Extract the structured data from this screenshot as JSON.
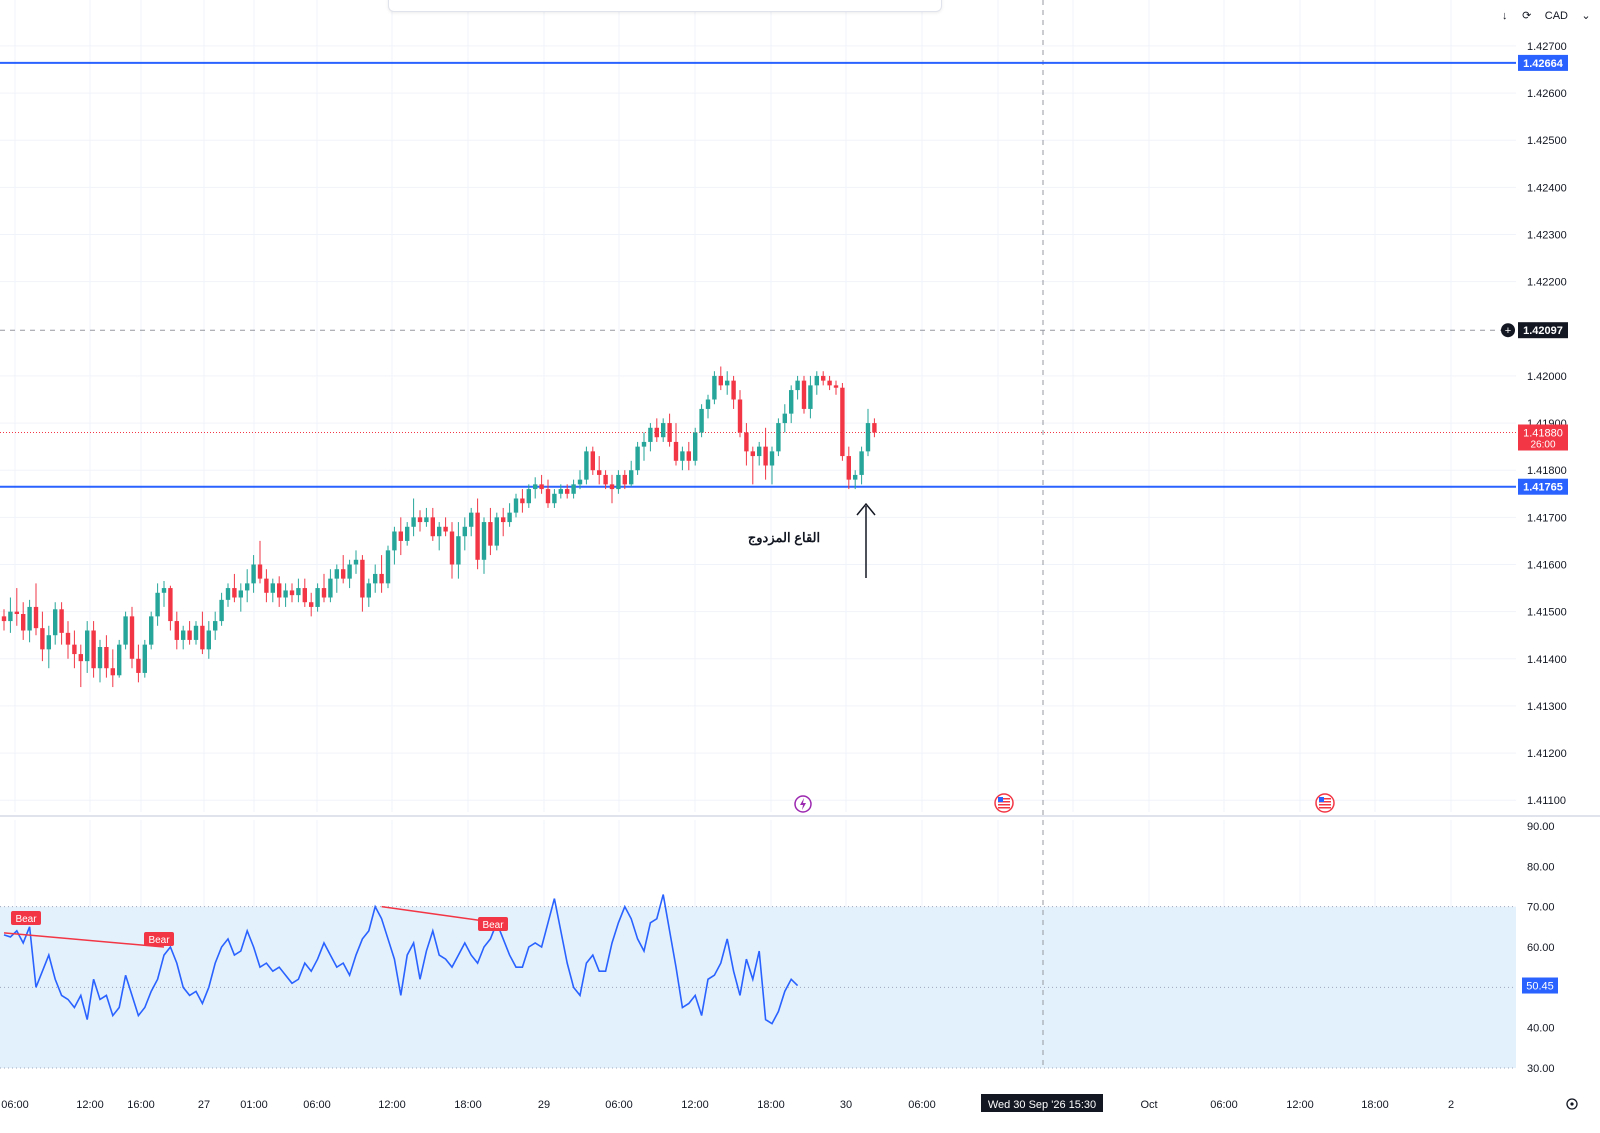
{
  "currency": "CAD",
  "currency_menu_icon": "chevron-down-icon",
  "download_icon": "arrow-down-icon",
  "sync_icon": "refresh-icon",
  "settings_icon": "gear-icon",
  "colors": {
    "up": "#26a69a",
    "down": "#f23645",
    "level_line": "#2962ff",
    "rsi_line": "#2962ff",
    "rsi_band": "#e3f1fc",
    "divergence": "#f23645",
    "crosshair_label_bg": "#131722",
    "date_label_bg": "#131722"
  },
  "chart_data": [
    {
      "type": "candlestick",
      "annotation": "القاع المزدوج",
      "ylim": [
        1.41075,
        1.42755
      ],
      "y_ticks": [
        "1.42700",
        "1.42600",
        "1.42500",
        "1.42400",
        "1.42300",
        "1.42200",
        "1.42000",
        "1.41900",
        "1.41800",
        "1.41700",
        "1.41600",
        "1.41500",
        "1.41400",
        "1.41300",
        "1.41200",
        "1.41100"
      ],
      "price_lines": [
        {
          "label": "1.42664",
          "value": 1.42664
        },
        {
          "label": "1.41765",
          "value": 1.41765
        }
      ],
      "crosshair": {
        "label": "1.42097",
        "value": 1.42097
      },
      "last_price": {
        "label": "1.41880",
        "countdown": "26:00",
        "value": 1.4188
      },
      "event_icons": [
        "lightning-icon",
        "us-flag-icon",
        "us-flag-icon"
      ],
      "ohlc": [
        [
          1.4149,
          1.41505,
          1.4146,
          1.4148
        ],
        [
          1.4148,
          1.4153,
          1.41455,
          1.415
        ],
        [
          1.415,
          1.4155,
          1.4147,
          1.41495
        ],
        [
          1.41495,
          1.4152,
          1.4144,
          1.4146
        ],
        [
          1.4146,
          1.41525,
          1.41435,
          1.4151
        ],
        [
          1.4151,
          1.4156,
          1.4145,
          1.41465
        ],
        [
          1.41465,
          1.415,
          1.41395,
          1.4142
        ],
        [
          1.4142,
          1.4147,
          1.4138,
          1.4145
        ],
        [
          1.4145,
          1.4152,
          1.4143,
          1.41505
        ],
        [
          1.41505,
          1.4152,
          1.4143,
          1.41455
        ],
        [
          1.41455,
          1.4148,
          1.414,
          1.4143
        ],
        [
          1.4143,
          1.4146,
          1.4138,
          1.4141
        ],
        [
          1.4141,
          1.4143,
          1.4134,
          1.41395
        ],
        [
          1.41395,
          1.4148,
          1.4137,
          1.4146
        ],
        [
          1.4146,
          1.4148,
          1.4136,
          1.4138
        ],
        [
          1.4138,
          1.4144,
          1.4135,
          1.41425
        ],
        [
          1.41425,
          1.4145,
          1.4136,
          1.4138
        ],
        [
          1.4138,
          1.4142,
          1.4134,
          1.41365
        ],
        [
          1.41365,
          1.4144,
          1.4136,
          1.4143
        ],
        [
          1.4143,
          1.415,
          1.4142,
          1.4149
        ],
        [
          1.4149,
          1.4151,
          1.4138,
          1.414
        ],
        [
          1.414,
          1.4143,
          1.4135,
          1.4137
        ],
        [
          1.4137,
          1.4144,
          1.4136,
          1.4143
        ],
        [
          1.4143,
          1.415,
          1.4142,
          1.4149
        ],
        [
          1.4149,
          1.4156,
          1.4147,
          1.4154
        ],
        [
          1.4154,
          1.41565,
          1.4151,
          1.4155
        ],
        [
          1.4155,
          1.41555,
          1.4146,
          1.4148
        ],
        [
          1.4148,
          1.415,
          1.4142,
          1.4144
        ],
        [
          1.4144,
          1.4147,
          1.4142,
          1.4146
        ],
        [
          1.4146,
          1.4148,
          1.4143,
          1.4144
        ],
        [
          1.4144,
          1.4148,
          1.4143,
          1.4147
        ],
        [
          1.4147,
          1.415,
          1.4141,
          1.4142
        ],
        [
          1.4142,
          1.4148,
          1.414,
          1.4146
        ],
        [
          1.4146,
          1.415,
          1.4144,
          1.4148
        ],
        [
          1.4148,
          1.4154,
          1.4147,
          1.41525
        ],
        [
          1.41525,
          1.4156,
          1.4151,
          1.4155
        ],
        [
          1.4155,
          1.4158,
          1.4152,
          1.4153
        ],
        [
          1.4153,
          1.4156,
          1.415,
          1.41545
        ],
        [
          1.41545,
          1.4159,
          1.4152,
          1.4156
        ],
        [
          1.4156,
          1.4162,
          1.4154,
          1.416
        ],
        [
          1.416,
          1.4165,
          1.4156,
          1.4157
        ],
        [
          1.4157,
          1.4159,
          1.4152,
          1.4154
        ],
        [
          1.4154,
          1.4157,
          1.4152,
          1.4156
        ],
        [
          1.4156,
          1.41575,
          1.4151,
          1.4153
        ],
        [
          1.4153,
          1.4156,
          1.4151,
          1.41545
        ],
        [
          1.41545,
          1.4156,
          1.4152,
          1.41535
        ],
        [
          1.41535,
          1.4157,
          1.4152,
          1.4155
        ],
        [
          1.4155,
          1.4157,
          1.4151,
          1.4152
        ],
        [
          1.4152,
          1.4154,
          1.4149,
          1.4151
        ],
        [
          1.4151,
          1.4156,
          1.415,
          1.4155
        ],
        [
          1.4155,
          1.4158,
          1.4152,
          1.4153
        ],
        [
          1.4153,
          1.4159,
          1.4152,
          1.4157
        ],
        [
          1.4157,
          1.416,
          1.4154,
          1.4159
        ],
        [
          1.4159,
          1.4162,
          1.4156,
          1.4157
        ],
        [
          1.4157,
          1.4161,
          1.4155,
          1.416
        ],
        [
          1.416,
          1.4163,
          1.4158,
          1.4161
        ],
        [
          1.4161,
          1.4162,
          1.415,
          1.4153
        ],
        [
          1.4153,
          1.4157,
          1.4151,
          1.4156
        ],
        [
          1.4156,
          1.416,
          1.4154,
          1.4158
        ],
        [
          1.4158,
          1.4162,
          1.4154,
          1.4156
        ],
        [
          1.4156,
          1.4164,
          1.4155,
          1.4163
        ],
        [
          1.4163,
          1.4168,
          1.416,
          1.4167
        ],
        [
          1.4167,
          1.417,
          1.4162,
          1.4165
        ],
        [
          1.4165,
          1.4169,
          1.4164,
          1.4168
        ],
        [
          1.4168,
          1.4174,
          1.4166,
          1.417
        ],
        [
          1.417,
          1.41715,
          1.4167,
          1.4169
        ],
        [
          1.4169,
          1.4172,
          1.4168,
          1.417
        ],
        [
          1.417,
          1.4172,
          1.4165,
          1.4166
        ],
        [
          1.4166,
          1.4169,
          1.4163,
          1.4168
        ],
        [
          1.4168,
          1.417,
          1.4166,
          1.4167
        ],
        [
          1.4167,
          1.4169,
          1.4157,
          1.416
        ],
        [
          1.416,
          1.4169,
          1.4157,
          1.4166
        ],
        [
          1.4166,
          1.417,
          1.4163,
          1.4168
        ],
        [
          1.4168,
          1.4172,
          1.4166,
          1.4171
        ],
        [
          1.4171,
          1.4174,
          1.4159,
          1.4161
        ],
        [
          1.4161,
          1.417,
          1.4158,
          1.4169
        ],
        [
          1.4169,
          1.4172,
          1.4162,
          1.4164
        ],
        [
          1.4164,
          1.4171,
          1.4163,
          1.417
        ],
        [
          1.417,
          1.4172,
          1.4166,
          1.4169
        ],
        [
          1.4169,
          1.4173,
          1.4168,
          1.4171
        ],
        [
          1.4171,
          1.4175,
          1.417,
          1.4174
        ],
        [
          1.4174,
          1.4176,
          1.4171,
          1.4173
        ],
        [
          1.4173,
          1.4177,
          1.4172,
          1.4176
        ],
        [
          1.4176,
          1.41785,
          1.4174,
          1.4177
        ],
        [
          1.4177,
          1.4179,
          1.4175,
          1.4176
        ],
        [
          1.4176,
          1.4178,
          1.4172,
          1.4173
        ],
        [
          1.4173,
          1.4176,
          1.4172,
          1.4175
        ],
        [
          1.4175,
          1.4177,
          1.4174,
          1.4176
        ],
        [
          1.4176,
          1.4177,
          1.4174,
          1.4175
        ],
        [
          1.4175,
          1.4178,
          1.4174,
          1.4177
        ],
        [
          1.4177,
          1.418,
          1.4176,
          1.4178
        ],
        [
          1.4178,
          1.4185,
          1.4177,
          1.4184
        ],
        [
          1.4184,
          1.4185,
          1.4179,
          1.418
        ],
        [
          1.418,
          1.4183,
          1.4177,
          1.4179
        ],
        [
          1.4179,
          1.418,
          1.4176,
          1.4177
        ],
        [
          1.4177,
          1.4179,
          1.4173,
          1.4176
        ],
        [
          1.4176,
          1.418,
          1.4175,
          1.4179
        ],
        [
          1.4179,
          1.418,
          1.4176,
          1.4177
        ],
        [
          1.4177,
          1.4182,
          1.41765,
          1.418
        ],
        [
          1.418,
          1.4186,
          1.4179,
          1.4185
        ],
        [
          1.4185,
          1.4188,
          1.4182,
          1.4186
        ],
        [
          1.4186,
          1.419,
          1.4184,
          1.4189
        ],
        [
          1.4189,
          1.4191,
          1.4186,
          1.4187
        ],
        [
          1.4187,
          1.4191,
          1.4186,
          1.419
        ],
        [
          1.419,
          1.4192,
          1.4185,
          1.4186
        ],
        [
          1.4186,
          1.419,
          1.4181,
          1.4182
        ],
        [
          1.4182,
          1.4185,
          1.418,
          1.4184
        ],
        [
          1.4184,
          1.4186,
          1.418,
          1.4182
        ],
        [
          1.4182,
          1.4189,
          1.4181,
          1.4188
        ],
        [
          1.4188,
          1.4194,
          1.4187,
          1.4193
        ],
        [
          1.4193,
          1.4196,
          1.4191,
          1.4195
        ],
        [
          1.4195,
          1.4201,
          1.4194,
          1.42
        ],
        [
          1.42,
          1.4202,
          1.4197,
          1.4198
        ],
        [
          1.4198,
          1.4201,
          1.4196,
          1.4199
        ],
        [
          1.4199,
          1.42,
          1.4193,
          1.4195
        ],
        [
          1.4195,
          1.4197,
          1.4187,
          1.4188
        ],
        [
          1.4188,
          1.419,
          1.4181,
          1.4184
        ],
        [
          1.4184,
          1.4185,
          1.4177,
          1.4183
        ],
        [
          1.4183,
          1.4186,
          1.4181,
          1.4185
        ],
        [
          1.4185,
          1.4189,
          1.4178,
          1.4181
        ],
        [
          1.4181,
          1.4185,
          1.4177,
          1.4184
        ],
        [
          1.4184,
          1.4191,
          1.4183,
          1.419
        ],
        [
          1.419,
          1.4194,
          1.4188,
          1.4192
        ],
        [
          1.4192,
          1.4198,
          1.419,
          1.4197
        ],
        [
          1.4197,
          1.42,
          1.4195,
          1.4199
        ],
        [
          1.4199,
          1.42,
          1.4192,
          1.4193
        ],
        [
          1.4193,
          1.42,
          1.4191,
          1.4198
        ],
        [
          1.4198,
          1.4201,
          1.4196,
          1.42
        ],
        [
          1.42,
          1.4201,
          1.4198,
          1.4199
        ],
        [
          1.4199,
          1.42,
          1.4197,
          1.4198
        ],
        [
          1.4198,
          1.4199,
          1.4196,
          1.41975
        ],
        [
          1.41975,
          1.41985,
          1.4182,
          1.4183
        ],
        [
          1.4183,
          1.4185,
          1.4176,
          1.4178
        ],
        [
          1.4178,
          1.418,
          1.4176,
          1.4179
        ],
        [
          1.4179,
          1.4185,
          1.4177,
          1.4184
        ],
        [
          1.4184,
          1.4193,
          1.4183,
          1.419
        ],
        [
          1.419,
          1.4191,
          1.4187,
          1.4188
        ]
      ]
    },
    {
      "type": "line",
      "name": "RSI",
      "ylim": [
        30,
        90
      ],
      "y_ticks": [
        "90.00",
        "80.00",
        "70.00",
        "60.00",
        "50.00",
        "40.00",
        "30.00"
      ],
      "band": [
        30,
        70
      ],
      "midline": 50,
      "last_label": "50.45",
      "values": [
        63,
        62.5,
        64,
        61,
        65,
        50,
        54,
        58,
        52,
        48,
        47,
        45,
        48,
        42,
        52,
        47,
        48,
        43,
        45,
        53,
        48,
        43,
        45,
        49,
        52,
        58,
        60,
        56,
        50,
        48,
        49,
        46,
        50,
        56,
        60,
        62,
        58,
        59,
        64,
        60,
        55,
        56,
        54,
        55,
        53,
        51,
        52,
        56,
        54,
        57,
        61,
        58,
        55,
        56,
        53,
        58,
        62,
        64,
        70,
        67,
        62,
        57,
        48,
        58,
        61,
        52,
        59,
        64,
        58,
        57,
        55,
        58,
        61,
        58,
        56,
        60,
        62,
        66,
        62,
        58,
        55,
        55,
        60,
        61,
        60,
        66,
        72,
        64,
        56,
        50,
        48,
        56,
        58,
        54,
        54,
        61,
        66,
        70,
        67,
        62,
        59,
        66,
        67,
        73,
        64,
        55,
        45,
        46,
        48,
        43,
        52,
        53,
        56,
        62,
        54,
        48,
        57,
        52,
        59,
        42,
        41,
        44,
        49,
        52,
        50.45
      ],
      "divergence_labels": [
        "Bear",
        "Bear",
        "Bear"
      ],
      "x_ticks": [
        "06:00",
        "12:00",
        "16:00",
        "27",
        "01:00",
        "06:00",
        "12:00",
        "18:00",
        "29",
        "06:00",
        "12:00",
        "18:00",
        "30",
        "06:00",
        "Oct",
        "06:00",
        "12:00",
        "18:00",
        "2"
      ],
      "crosshair_date": "Wed 30 Sep '26   15:30"
    }
  ]
}
